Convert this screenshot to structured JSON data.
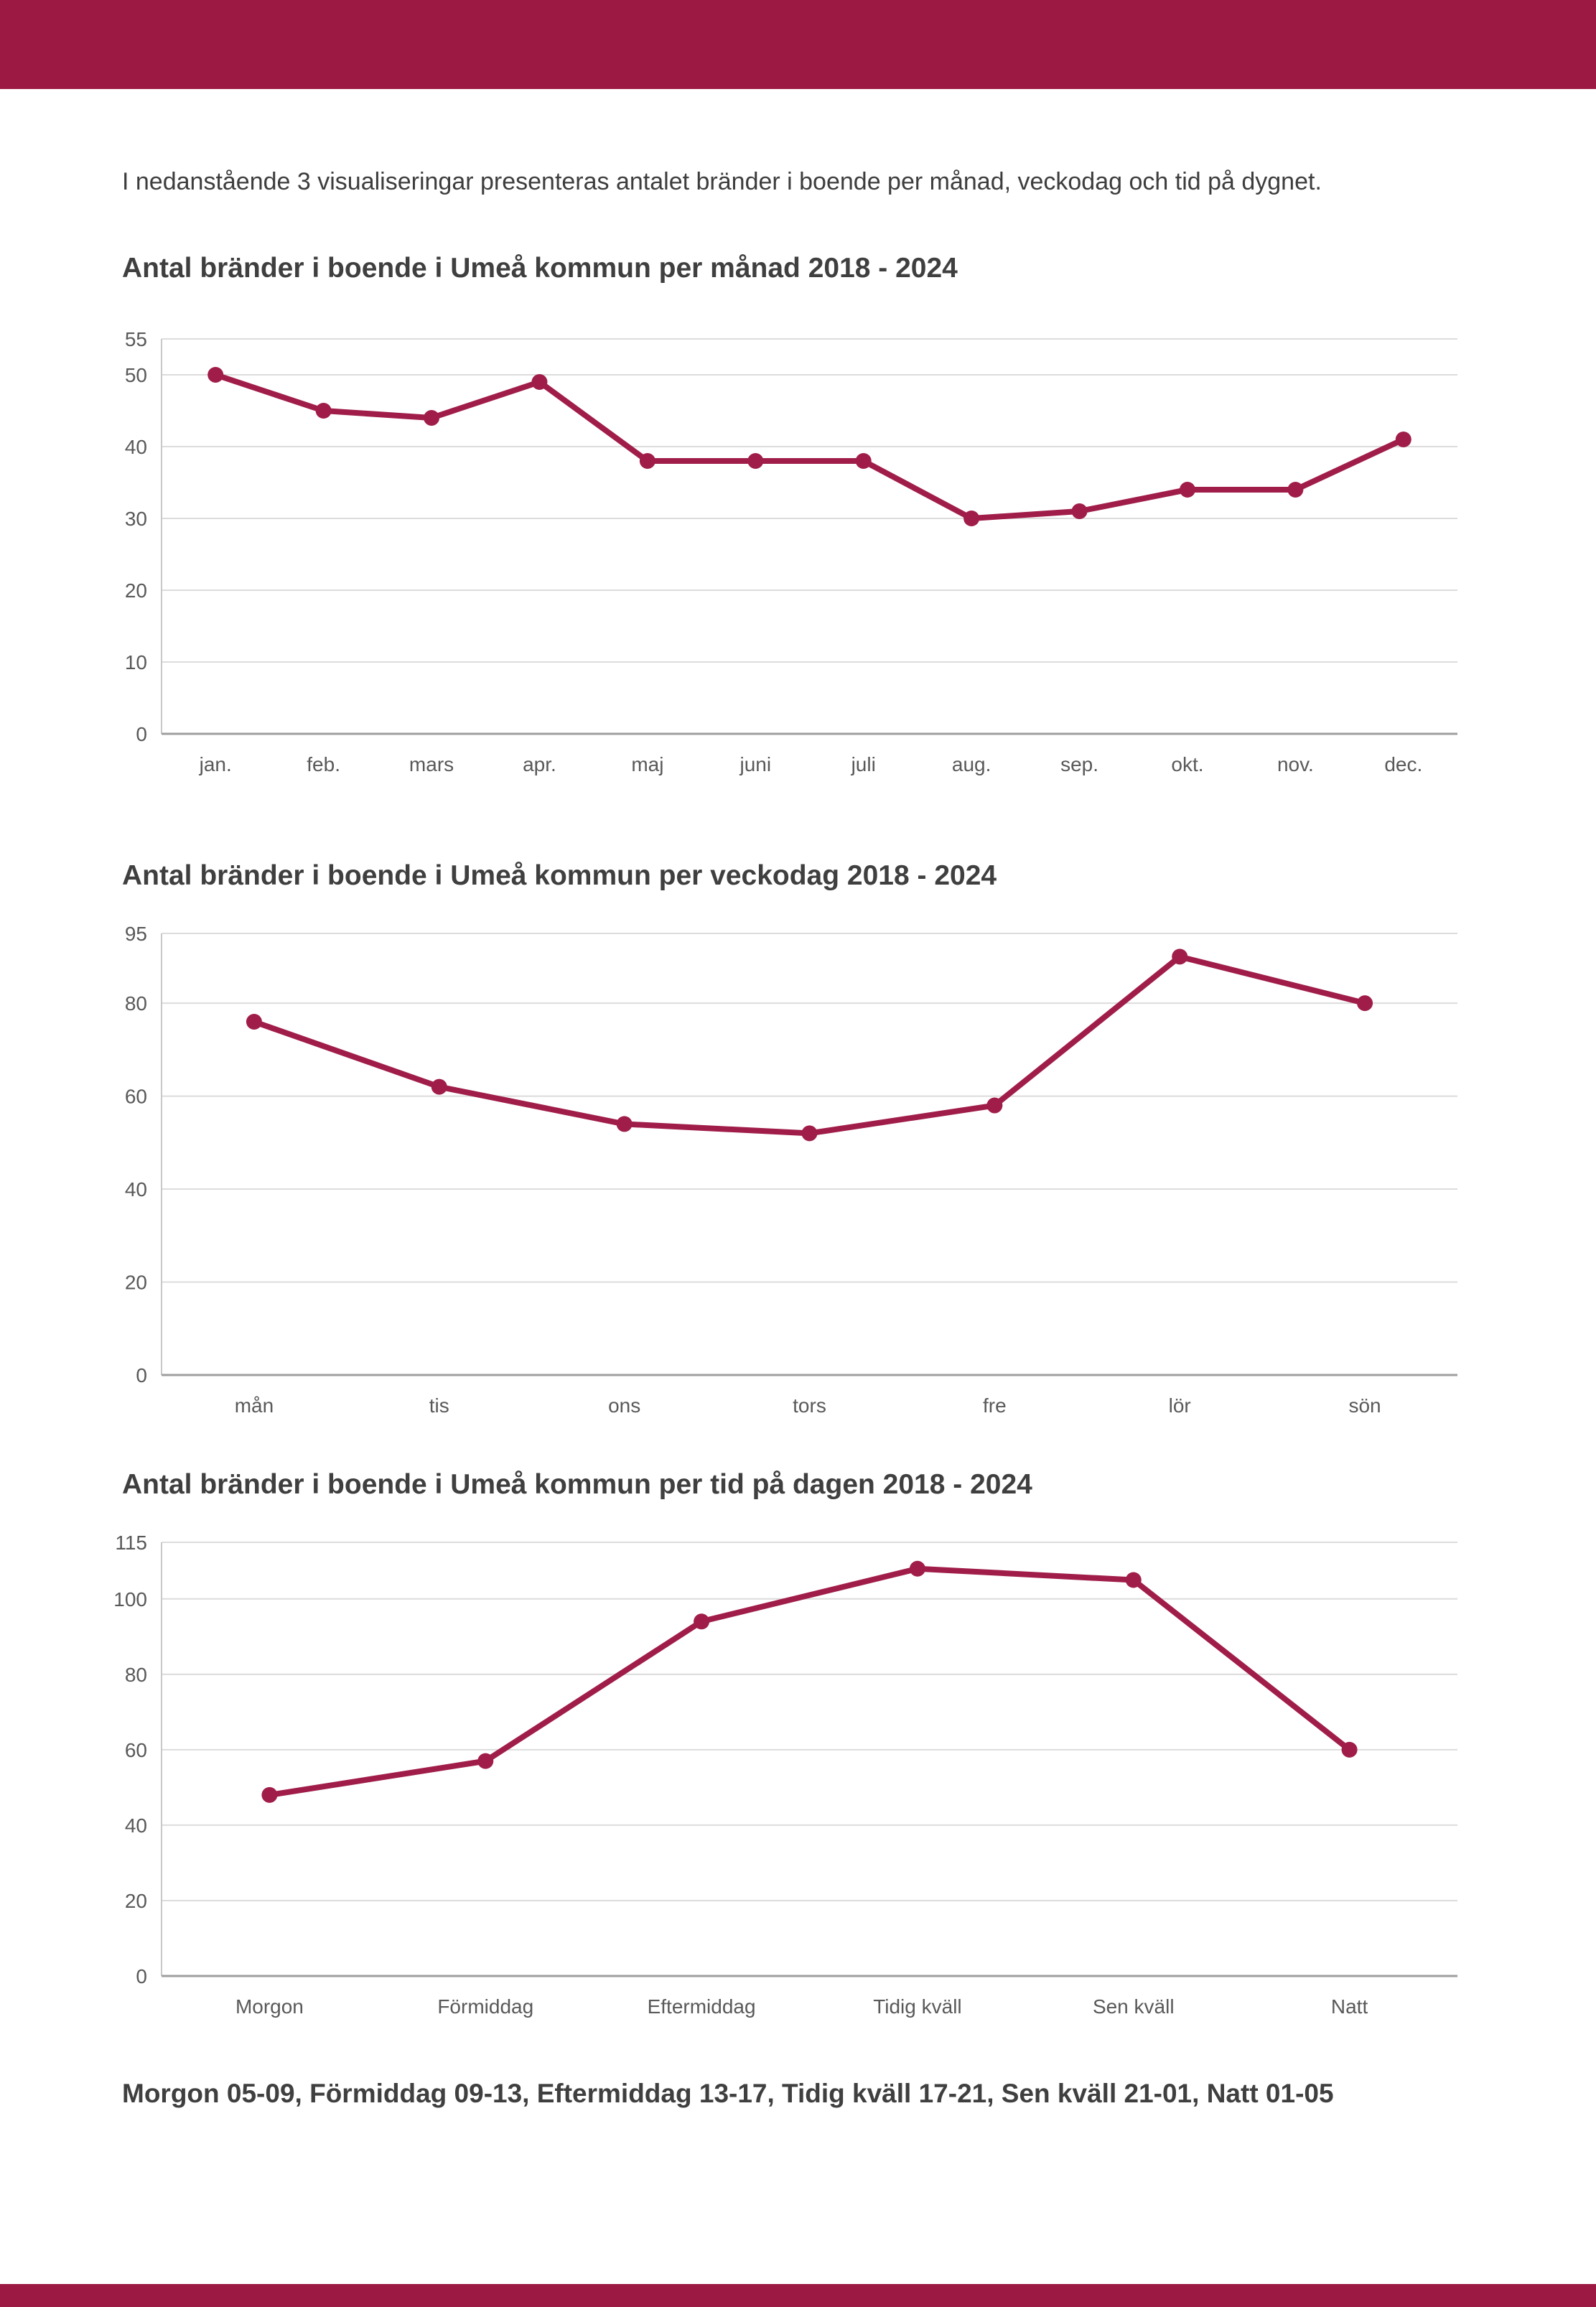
{
  "page": {
    "intro": "I nedanstående 3 visualiseringar presenteras antalet bränder i boende per månad, veckodag och tid på dygnet.",
    "footer_note": "Morgon 05-09, Förmiddag 09-13, Eftermiddag 13-17, Tidig kväll 17-21, Sen kväll 21-01, Natt 01-05"
  },
  "colors": {
    "header_bar": "#9b1942",
    "line": "#a01d4a",
    "point": "#a01d4a",
    "grid": "#dcdcdc",
    "axis_bottom": "#9e9e9e",
    "axis_left": "#c8c8c8",
    "tick_text": "#595959"
  },
  "chart_data": [
    {
      "type": "line",
      "title": "Antal bränder i boende i Umeå kommun per månad 2018 - 2024",
      "categories": [
        "jan.",
        "feb.",
        "mars",
        "apr.",
        "maj",
        "juni",
        "juli",
        "aug.",
        "sep.",
        "okt.",
        "nov.",
        "dec."
      ],
      "values": [
        50,
        45,
        44,
        49,
        38,
        38,
        38,
        30,
        31,
        34,
        34,
        41
      ],
      "xlabel": "",
      "ylabel": "",
      "ylim": [
        0,
        55
      ],
      "yticks": [
        0,
        10,
        20,
        30,
        40,
        50,
        55
      ],
      "grid": true,
      "legend": "none"
    },
    {
      "type": "line",
      "title": "Antal bränder i boende i Umeå kommun per veckodag 2018 - 2024",
      "categories": [
        "mån",
        "tis",
        "ons",
        "tors",
        "fre",
        "lör",
        "sön"
      ],
      "values": [
        76,
        62,
        54,
        52,
        58,
        90,
        80
      ],
      "xlabel": "",
      "ylabel": "",
      "ylim": [
        0,
        95
      ],
      "yticks": [
        0,
        20,
        40,
        60,
        80,
        95
      ],
      "grid": true,
      "legend": "none"
    },
    {
      "type": "line",
      "title": "Antal bränder i boende i Umeå kommun per tid på dagen 2018 - 2024",
      "categories": [
        "Morgon",
        "Förmiddag",
        "Eftermiddag",
        "Tidig kväll",
        "Sen kväll",
        "Natt"
      ],
      "values": [
        48,
        57,
        94,
        108,
        105,
        60
      ],
      "xlabel": "",
      "ylabel": "",
      "ylim": [
        0,
        115
      ],
      "yticks": [
        0,
        20,
        40,
        60,
        80,
        100,
        115
      ],
      "grid": true,
      "legend": "none"
    }
  ]
}
